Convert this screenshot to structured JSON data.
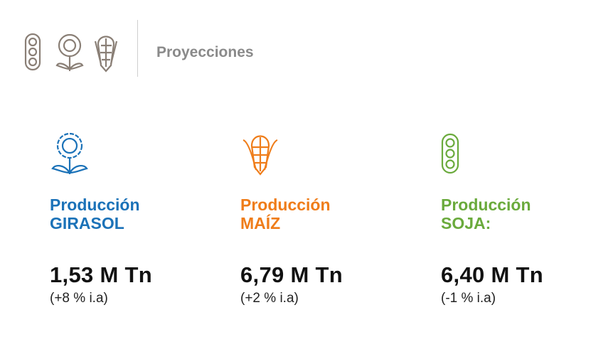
{
  "header": {
    "title": "Proyecciones"
  },
  "cards": [
    {
      "label": "Producción",
      "crop": "GIRASOL",
      "value": "1,53 M Tn",
      "change": "(+8 % i.a)"
    },
    {
      "label": "Producción",
      "crop": "MAÍZ",
      "value": "6,79 M Tn",
      "change": "(+2 % i.a)"
    },
    {
      "label": "Producción",
      "crop": "SOJA:",
      "value": "6,40 M Tn",
      "change": "(-1 % i.a)"
    }
  ]
}
